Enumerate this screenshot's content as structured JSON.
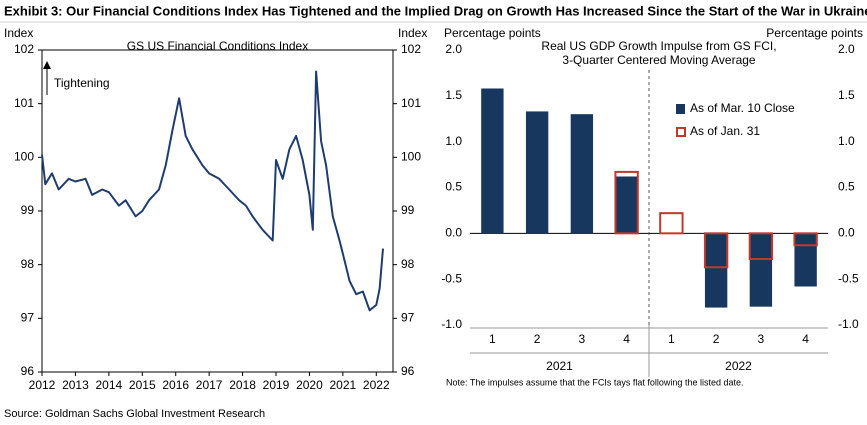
{
  "title": "Exhibit 3: Our Financial Conditions Index Has Tightened and the Implied Drag on Growth Has Increased Since the Start of the War in Ukraine",
  "source": "Source: Goldman Sachs Global Investment Research",
  "chart_data": [
    {
      "type": "line",
      "title": "GS US Financial Conditions Index",
      "ylabel": "Index",
      "y2label": "Index",
      "annotation": "Tightening",
      "color": "#1f3c6e",
      "x": [
        2012.0,
        2012.1,
        2012.3,
        2012.5,
        2012.8,
        2013.0,
        2013.3,
        2013.5,
        2013.8,
        2014.0,
        2014.3,
        2014.5,
        2014.8,
        2015.0,
        2015.2,
        2015.5,
        2015.7,
        2015.9,
        2016.1,
        2016.3,
        2016.5,
        2016.8,
        2017.0,
        2017.3,
        2017.6,
        2017.9,
        2018.1,
        2018.3,
        2018.6,
        2018.9,
        2019.0,
        2019.2,
        2019.4,
        2019.6,
        2019.8,
        2020.0,
        2020.1,
        2020.2,
        2020.35,
        2020.5,
        2020.7,
        2020.9,
        2021.0,
        2021.2,
        2021.4,
        2021.6,
        2021.8,
        2022.0,
        2022.1,
        2022.2
      ],
      "values": [
        100.05,
        99.5,
        99.7,
        99.4,
        99.6,
        99.55,
        99.6,
        99.3,
        99.4,
        99.35,
        99.1,
        99.2,
        98.9,
        99.0,
        99.2,
        99.4,
        99.85,
        100.5,
        101.1,
        100.4,
        100.15,
        99.85,
        99.7,
        99.6,
        99.4,
        99.2,
        99.1,
        98.9,
        98.65,
        98.45,
        99.95,
        99.6,
        100.15,
        100.4,
        99.95,
        99.3,
        98.65,
        101.6,
        100.3,
        99.85,
        98.9,
        98.45,
        98.2,
        97.7,
        97.45,
        97.5,
        97.15,
        97.25,
        97.55,
        98.3
      ],
      "xlim": [
        2012,
        2022.5
      ],
      "xticks": [
        2012,
        2013,
        2014,
        2015,
        2016,
        2017,
        2018,
        2019,
        2020,
        2021,
        2022
      ],
      "ylim": [
        96,
        102
      ],
      "yticks": [
        96,
        97,
        98,
        99,
        100,
        101,
        102
      ]
    },
    {
      "type": "bar",
      "title": "Real US GDP Growth Impulse from GS FCI,",
      "subtitle": "3-Quarter Centered Moving Average",
      "ylabel": "Percentage points",
      "y2label": "Percentage points",
      "note": "Note: The impulses assume that the FCIs tays flat following the listed date.",
      "categories": [
        "1",
        "2",
        "3",
        "4",
        "1",
        "2",
        "3",
        "4"
      ],
      "groups": [
        "2021",
        "2022"
      ],
      "series": [
        {
          "name": "As of Mar. 10 Close",
          "color": "#17375e",
          "values": [
            1.58,
            1.33,
            1.3,
            0.62,
            null,
            -0.81,
            -0.8,
            -0.58
          ]
        },
        {
          "name": "As of Jan. 31",
          "color": "#c0392b",
          "values": [
            null,
            null,
            null,
            0.67,
            0.22,
            -0.37,
            -0.28,
            -0.13
          ]
        }
      ],
      "ylim": [
        -1,
        2
      ],
      "yticks": [
        {
          "value": -1,
          "label": "-1.0"
        },
        {
          "value": -0.5,
          "label": "-0.5"
        },
        {
          "value": 0,
          "label": "0.0"
        },
        {
          "value": 0.5,
          "label": "0.5"
        },
        {
          "value": 1,
          "label": "1.0"
        },
        {
          "value": 1.5,
          "label": "1.5"
        },
        {
          "value": 2,
          "label": "2.0"
        }
      ]
    }
  ]
}
